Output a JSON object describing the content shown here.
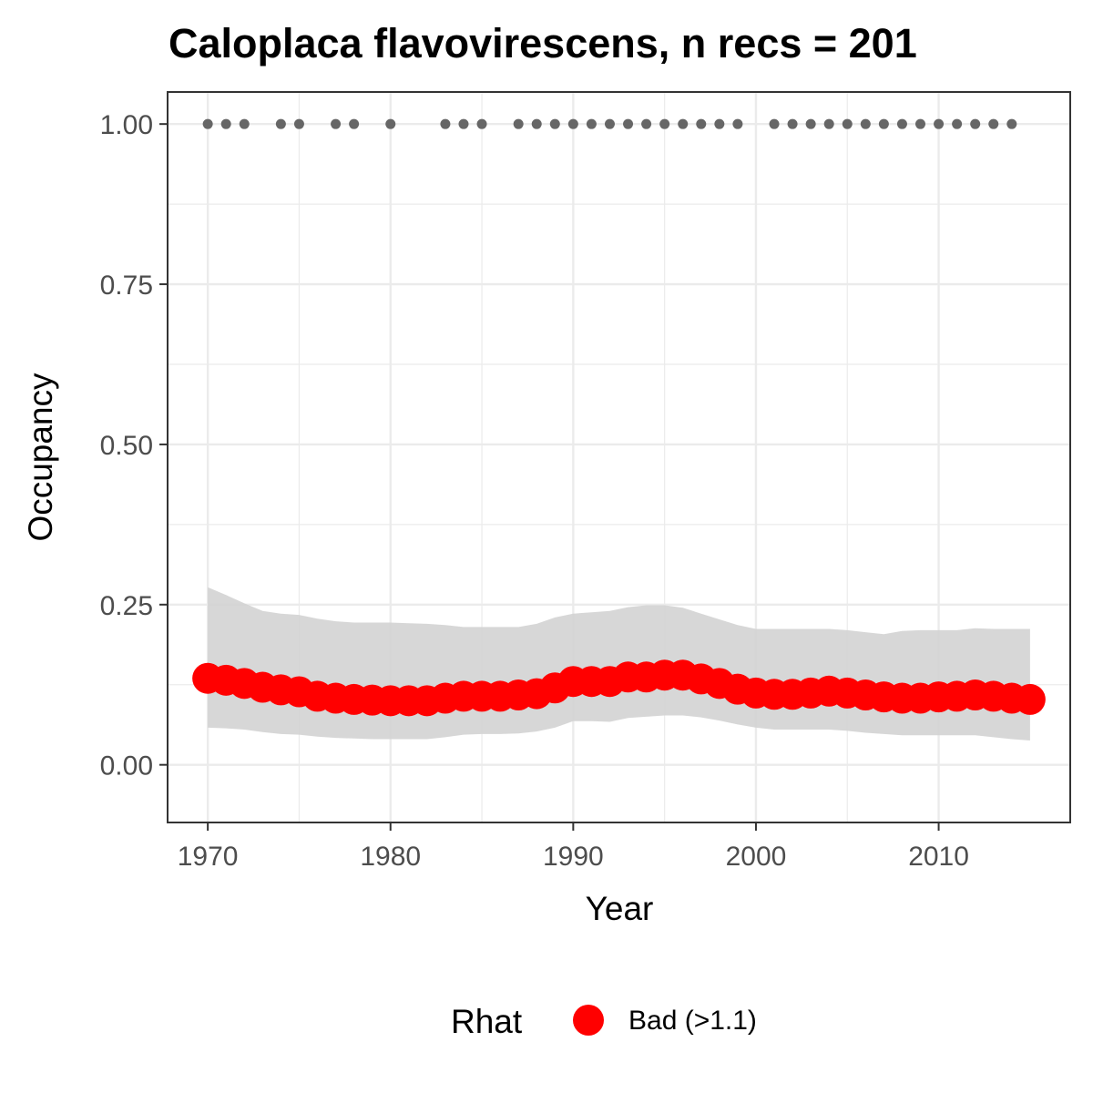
{
  "chart_data": {
    "type": "line",
    "title": "Caloplaca flavovirescens, n recs = 201",
    "xlabel": "Year",
    "ylabel": "Occupancy",
    "xlim": [
      1967.8,
      2017.2
    ],
    "ylim": [
      -0.09,
      1.05
    ],
    "x_ticks": [
      1970,
      1980,
      1990,
      2000,
      2010
    ],
    "y_ticks": [
      0.0,
      0.25,
      0.5,
      0.75,
      1.0
    ],
    "y_tick_labels": [
      "0.00",
      "0.25",
      "0.50",
      "0.75",
      "1.00"
    ],
    "grid": true,
    "colors": {
      "series": "#ff0000",
      "ribbon": "#d3d3d3",
      "records": "#666666",
      "grid": "#ebebeb",
      "border": "#333333"
    },
    "x": [
      1970,
      1971,
      1972,
      1973,
      1974,
      1975,
      1976,
      1977,
      1978,
      1979,
      1980,
      1981,
      1982,
      1983,
      1984,
      1985,
      1986,
      1987,
      1988,
      1989,
      1990,
      1991,
      1992,
      1993,
      1994,
      1995,
      1996,
      1997,
      1998,
      1999,
      2000,
      2001,
      2002,
      2003,
      2004,
      2005,
      2006,
      2007,
      2008,
      2009,
      2010,
      2011,
      2012,
      2013,
      2014,
      2015
    ],
    "series": [
      {
        "values": [
          0.135,
          0.132,
          0.127,
          0.121,
          0.117,
          0.114,
          0.107,
          0.104,
          0.102,
          0.101,
          0.1,
          0.1,
          0.1,
          0.104,
          0.107,
          0.107,
          0.107,
          0.109,
          0.111,
          0.12,
          0.13,
          0.13,
          0.13,
          0.137,
          0.137,
          0.14,
          0.14,
          0.134,
          0.127,
          0.118,
          0.112,
          0.11,
          0.11,
          0.112,
          0.115,
          0.112,
          0.109,
          0.106,
          0.104,
          0.104,
          0.106,
          0.107,
          0.109,
          0.107,
          0.104,
          0.102
        ]
      }
    ],
    "ribbon": {
      "lower": [
        0.058,
        0.057,
        0.055,
        0.051,
        0.048,
        0.047,
        0.044,
        0.042,
        0.041,
        0.04,
        0.04,
        0.04,
        0.04,
        0.043,
        0.047,
        0.048,
        0.048,
        0.049,
        0.052,
        0.058,
        0.068,
        0.068,
        0.067,
        0.073,
        0.075,
        0.077,
        0.077,
        0.074,
        0.069,
        0.063,
        0.058,
        0.055,
        0.055,
        0.055,
        0.055,
        0.053,
        0.05,
        0.048,
        0.046,
        0.046,
        0.046,
        0.046,
        0.046,
        0.043,
        0.04,
        0.038
      ],
      "upper": [
        0.277,
        0.265,
        0.252,
        0.24,
        0.236,
        0.234,
        0.228,
        0.224,
        0.222,
        0.222,
        0.222,
        0.221,
        0.22,
        0.218,
        0.215,
        0.215,
        0.215,
        0.215,
        0.22,
        0.23,
        0.236,
        0.238,
        0.24,
        0.246,
        0.249,
        0.249,
        0.245,
        0.236,
        0.227,
        0.218,
        0.212,
        0.212,
        0.212,
        0.212,
        0.212,
        0.21,
        0.207,
        0.204,
        0.209,
        0.21,
        0.21,
        0.21,
        0.213,
        0.212,
        0.212,
        0.212
      ]
    },
    "record_years": [
      1970,
      1971,
      1972,
      1974,
      1975,
      1977,
      1978,
      1980,
      1983,
      1984,
      1985,
      1987,
      1988,
      1989,
      1990,
      1991,
      1992,
      1993,
      1994,
      1995,
      1996,
      1997,
      1998,
      1999,
      2001,
      2002,
      2003,
      2004,
      2005,
      2006,
      2007,
      2008,
      2009,
      2010,
      2011,
      2012,
      2013,
      2014
    ],
    "record_value": 1.0,
    "legend": {
      "title": "Rhat",
      "items": [
        {
          "label": "Bad (>1.1)",
          "color": "#ff0000"
        }
      ],
      "position": "bottom"
    }
  }
}
